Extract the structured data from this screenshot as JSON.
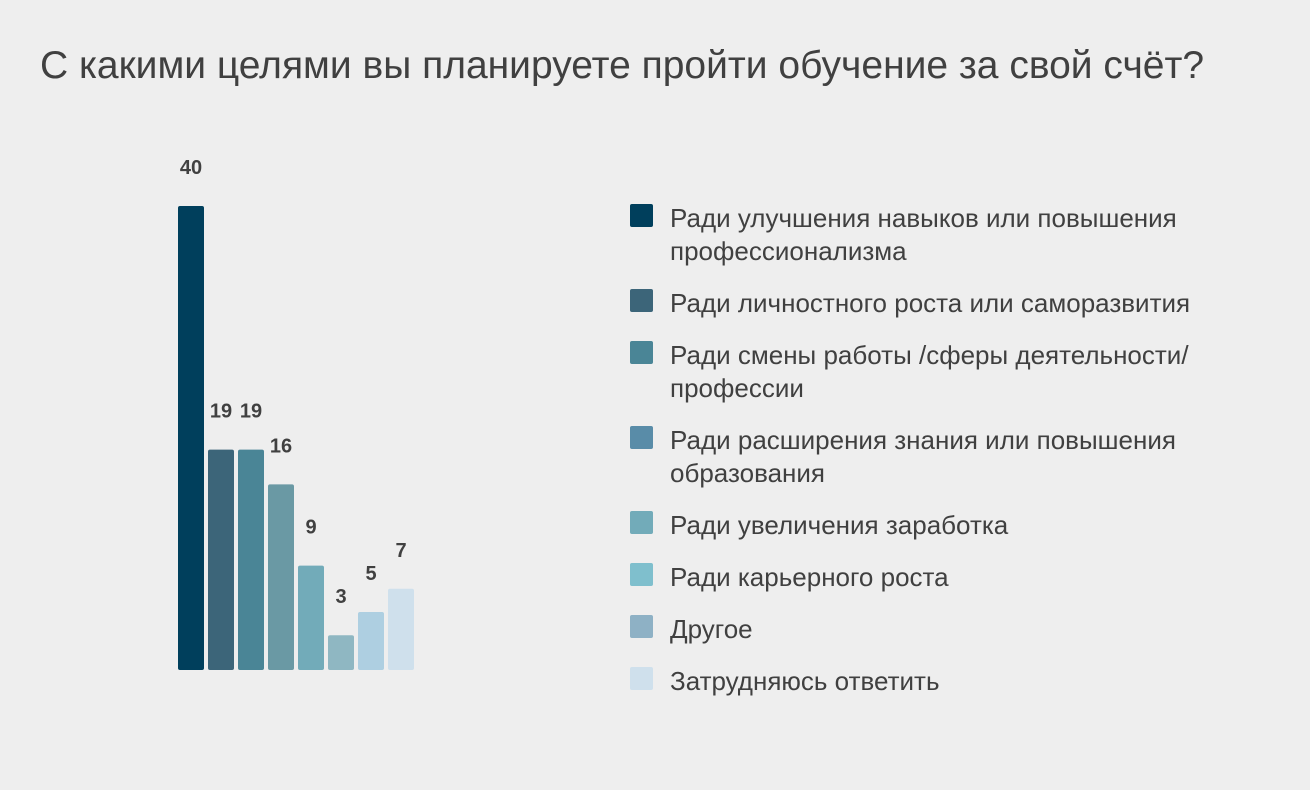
{
  "title": "С какими целями вы планируете пройти обучение за свой счёт?",
  "colors": {
    "background": "#eeeeee",
    "text": "#404040"
  },
  "chart_data": {
    "type": "bar",
    "title": "С какими целями вы планируете пройти обучение за свой счёт?",
    "xlabel": "",
    "ylabel": "",
    "ylim": [
      0,
      40
    ],
    "grid": false,
    "legend_position": "right",
    "categories": [
      "Ради улучшения навыков или повышения профессионализма",
      "Ради личностного роста или саморазвития",
      "Ради смены работы /сферы деятельности/профессии",
      "Ради расширения знания или повышения образования",
      "Ради увеличения заработка",
      "Ради карьерного роста",
      "Другое",
      "Затрудняюсь ответить"
    ],
    "values": [
      40,
      19,
      19,
      16,
      9,
      3,
      5,
      7
    ],
    "colors": [
      "#003f5c",
      "#3c6579",
      "#4a8596",
      "#6a99a4",
      "#72abb9",
      "#8fb7c2",
      "#aecfe1",
      "#cfe0ec"
    ],
    "legend": [
      {
        "label": "Ради улучшения навыков или повышения профессионализма",
        "color": "#003f5c"
      },
      {
        "label": "Ради личностного роста или саморазвития",
        "color": "#3c6579"
      },
      {
        "label": "Ради смены работы /сферы деятельности/профессии",
        "color": "#4a8596"
      },
      {
        "label": "Ради расширения знания или повышения образования",
        "color": "#598ca8"
      },
      {
        "label": "Ради увеличения заработка",
        "color": "#72abb9"
      },
      {
        "label": "Ради карьерного роста",
        "color": "#7fbfcd"
      },
      {
        "label": "Другое",
        "color": "#8eb1c5"
      },
      {
        "label": "Затрудняюсь ответить",
        "color": "#cfe0ec"
      }
    ]
  }
}
